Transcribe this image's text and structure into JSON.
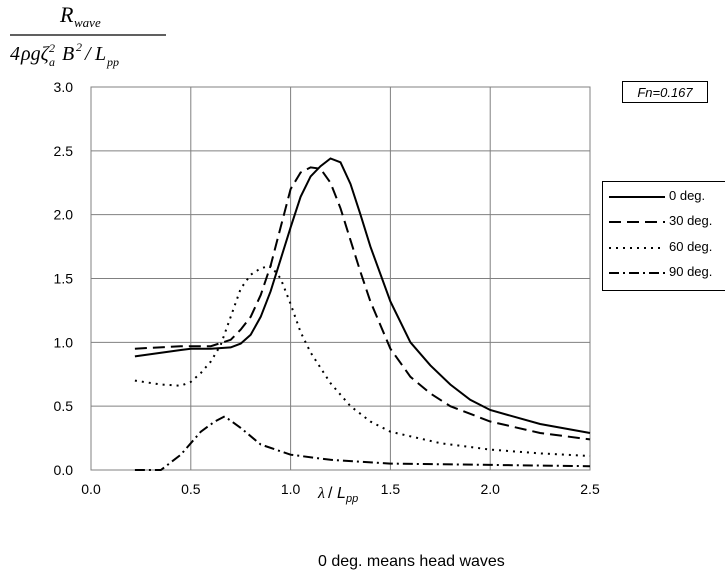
{
  "chart_data": {
    "type": "line",
    "xlim": [
      0.0,
      2.5
    ],
    "ylim": [
      0.0,
      3.0
    ],
    "x_ticks": [
      "0.0",
      "0.5",
      "1.0",
      "1.5",
      "2.0",
      "2.5"
    ],
    "y_ticks": [
      "0.0",
      "0.5",
      "1.0",
      "1.5",
      "2.0",
      "2.5",
      "3.0"
    ],
    "grid": true,
    "legend_position": "right",
    "ylabel_numerator": "R_wave",
    "ylabel_denominator": "4ρgζa² B²/Lpp",
    "xlabel": "λ/Lpp",
    "annotation": "Fn=0.167",
    "series": [
      {
        "name": "0 deg.",
        "dash": "solid",
        "x": [
          0.22,
          0.45,
          0.5,
          0.6,
          0.7,
          0.75,
          0.8,
          0.85,
          0.9,
          0.95,
          1.0,
          1.05,
          1.1,
          1.15,
          1.2,
          1.25,
          1.3,
          1.35,
          1.4,
          1.5,
          1.6,
          1.7,
          1.8,
          1.9,
          2.0,
          2.25,
          2.5
        ],
        "y": [
          0.89,
          0.94,
          0.95,
          0.95,
          0.96,
          0.99,
          1.06,
          1.2,
          1.4,
          1.65,
          1.9,
          2.14,
          2.3,
          2.38,
          2.44,
          2.41,
          2.24,
          2.0,
          1.75,
          1.32,
          1.0,
          0.82,
          0.67,
          0.55,
          0.47,
          0.36,
          0.29
        ]
      },
      {
        "name": "30 deg.",
        "dash": "long-dash",
        "x": [
          0.22,
          0.45,
          0.5,
          0.6,
          0.7,
          0.75,
          0.8,
          0.85,
          0.9,
          0.95,
          1.0,
          1.05,
          1.1,
          1.15,
          1.2,
          1.25,
          1.3,
          1.35,
          1.4,
          1.5,
          1.6,
          1.7,
          1.8,
          2.0,
          2.25,
          2.5
        ],
        "y": [
          0.95,
          0.97,
          0.97,
          0.97,
          1.02,
          1.1,
          1.2,
          1.37,
          1.6,
          1.9,
          2.2,
          2.33,
          2.37,
          2.36,
          2.25,
          2.05,
          1.8,
          1.55,
          1.32,
          0.95,
          0.73,
          0.6,
          0.5,
          0.38,
          0.29,
          0.24
        ]
      },
      {
        "name": "60 deg.",
        "dash": "dotted",
        "x": [
          0.22,
          0.35,
          0.45,
          0.5,
          0.55,
          0.6,
          0.65,
          0.7,
          0.75,
          0.8,
          0.85,
          0.9,
          0.95,
          1.0,
          1.05,
          1.1,
          1.2,
          1.3,
          1.4,
          1.5,
          1.75,
          2.0,
          2.25,
          2.5
        ],
        "y": [
          0.7,
          0.67,
          0.66,
          0.69,
          0.76,
          0.85,
          0.98,
          1.2,
          1.42,
          1.53,
          1.58,
          1.6,
          1.5,
          1.3,
          1.08,
          0.92,
          0.68,
          0.5,
          0.38,
          0.3,
          0.21,
          0.16,
          0.13,
          0.11
        ]
      },
      {
        "name": "90 deg.",
        "dash": "dash-dot",
        "x": [
          0.22,
          0.35,
          0.45,
          0.55,
          0.62,
          0.67,
          0.75,
          0.85,
          1.0,
          1.2,
          1.5,
          2.0,
          2.5
        ],
        "y": [
          0.0,
          0.0,
          0.12,
          0.3,
          0.38,
          0.42,
          0.33,
          0.2,
          0.12,
          0.08,
          0.05,
          0.04,
          0.03
        ]
      }
    ]
  },
  "note": "0 deg. means head waves"
}
